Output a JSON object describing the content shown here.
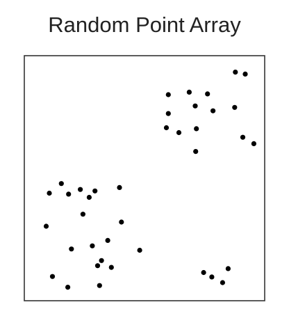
{
  "title": "Random Point Array",
  "colors": {
    "frame": "#333333",
    "point": "#000000",
    "background": "#ffffff"
  },
  "chart_data": {
    "type": "scatter",
    "title": "Random Point Array",
    "xlabel": "",
    "ylabel": "",
    "xlim": [
      0,
      1
    ],
    "ylim": [
      0,
      1
    ],
    "grid": false,
    "axes_ticks": false,
    "series": [
      {
        "points": [
          [
            0.878,
            0.933
          ],
          [
            0.919,
            0.925
          ],
          [
            0.599,
            0.841
          ],
          [
            0.686,
            0.851
          ],
          [
            0.762,
            0.844
          ],
          [
            0.711,
            0.795
          ],
          [
            0.785,
            0.775
          ],
          [
            0.875,
            0.789
          ],
          [
            0.599,
            0.764
          ],
          [
            0.591,
            0.706
          ],
          [
            0.643,
            0.686
          ],
          [
            0.716,
            0.702
          ],
          [
            0.909,
            0.667
          ],
          [
            0.955,
            0.641
          ],
          [
            0.713,
            0.609
          ],
          [
            0.154,
            0.478
          ],
          [
            0.233,
            0.454
          ],
          [
            0.294,
            0.448
          ],
          [
            0.104,
            0.439
          ],
          [
            0.184,
            0.435
          ],
          [
            0.396,
            0.462
          ],
          [
            0.27,
            0.422
          ],
          [
            0.244,
            0.353
          ],
          [
            0.404,
            0.321
          ],
          [
            0.091,
            0.304
          ],
          [
            0.347,
            0.246
          ],
          [
            0.283,
            0.224
          ],
          [
            0.48,
            0.206
          ],
          [
            0.196,
            0.211
          ],
          [
            0.321,
            0.164
          ],
          [
            0.305,
            0.143
          ],
          [
            0.362,
            0.136
          ],
          [
            0.117,
            0.099
          ],
          [
            0.181,
            0.055
          ],
          [
            0.313,
            0.062
          ],
          [
            0.746,
            0.115
          ],
          [
            0.78,
            0.097
          ],
          [
            0.825,
            0.074
          ],
          [
            0.848,
            0.131
          ]
        ]
      }
    ]
  }
}
